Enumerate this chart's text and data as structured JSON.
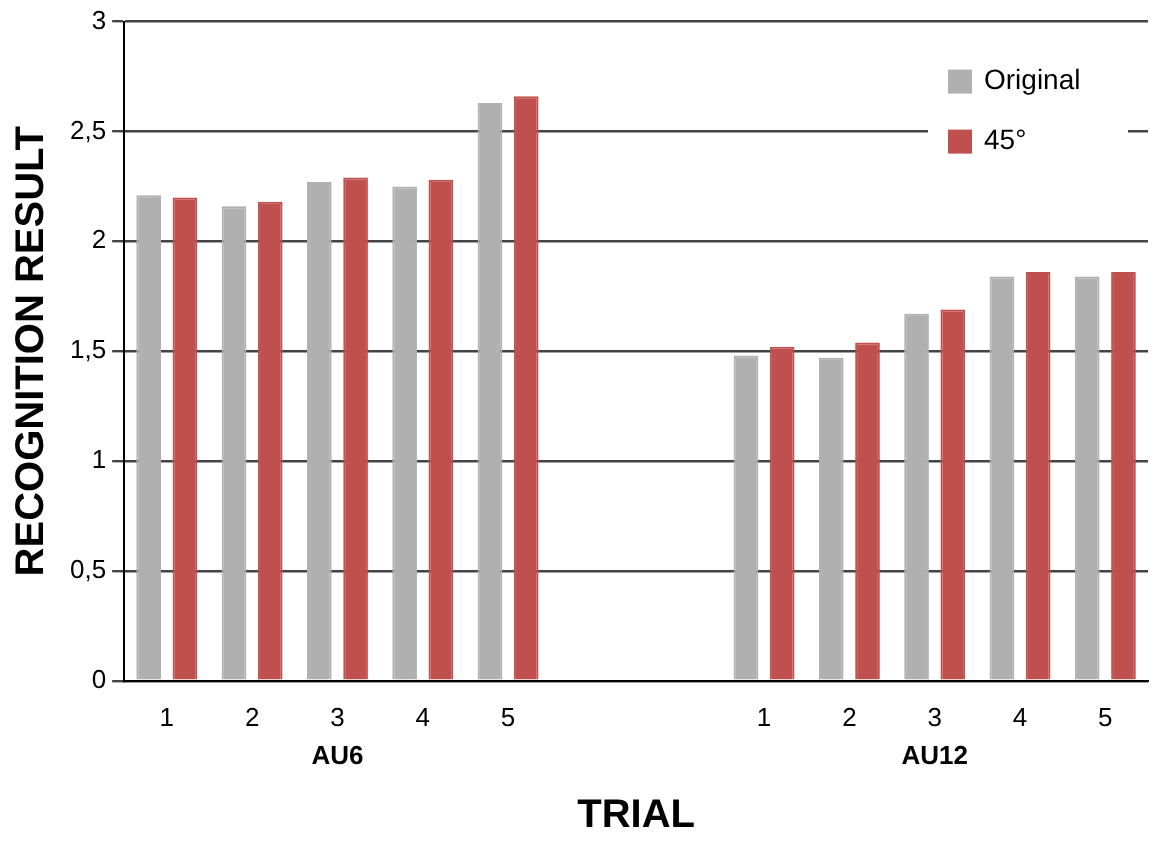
{
  "chart_data": {
    "type": "bar",
    "xlabel": "TRIAL",
    "ylabel": "RECOGNITION RESULT",
    "categories": [
      "1",
      "2",
      "3",
      "4",
      "5",
      null,
      null,
      "1",
      "2",
      "3",
      "4",
      "5"
    ],
    "series": [
      {
        "name": "Original",
        "color": "#b0b0b0",
        "values": [
          2.21,
          2.16,
          2.27,
          2.25,
          2.63,
          null,
          null,
          1.48,
          1.47,
          1.67,
          1.84,
          1.84
        ]
      },
      {
        "name": "45°",
        "color": "#c0504d",
        "values": [
          2.2,
          2.18,
          2.29,
          2.28,
          2.66,
          null,
          null,
          1.52,
          1.54,
          1.69,
          1.86,
          1.86
        ]
      }
    ],
    "ylim": [
      0,
      3
    ],
    "yticks": [
      0,
      {
        "value": 0.5,
        "label": "0,5"
      },
      1,
      {
        "value": 1.5,
        "label": "1,5"
      },
      2,
      {
        "value": 2.5,
        "label": "2,5"
      },
      3
    ],
    "grid": "y",
    "legend": "top right",
    "annotations": [
      "AU6",
      "AU12"
    ]
  }
}
